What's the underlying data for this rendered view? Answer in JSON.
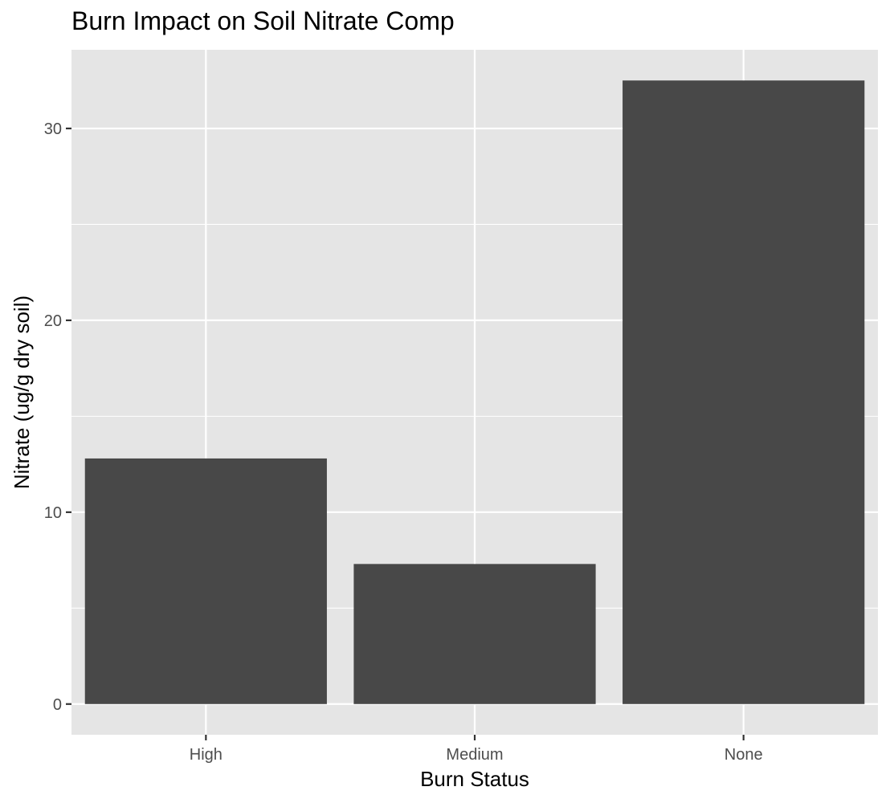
{
  "chart_data": {
    "type": "bar",
    "title": "Burn Impact on Soil Nitrate Comp",
    "xlabel": "Burn Status",
    "ylabel": "Nitrate (ug/g dry soil)",
    "categories": [
      "High",
      "Medium",
      "None"
    ],
    "values": [
      12.8,
      7.3,
      32.5
    ],
    "ylim": [
      -1.6,
      34.1
    ],
    "yticks": [
      0,
      10,
      20,
      30
    ],
    "ytick_labels": [
      "0",
      "10",
      "20",
      "30"
    ],
    "grid": true,
    "legend": "none",
    "colors": {
      "bar": "#484848",
      "panel": "#e5e5e5",
      "grid": "#ffffff",
      "tick_text": "#4d4d4d",
      "tick_mark": "#333333"
    }
  }
}
